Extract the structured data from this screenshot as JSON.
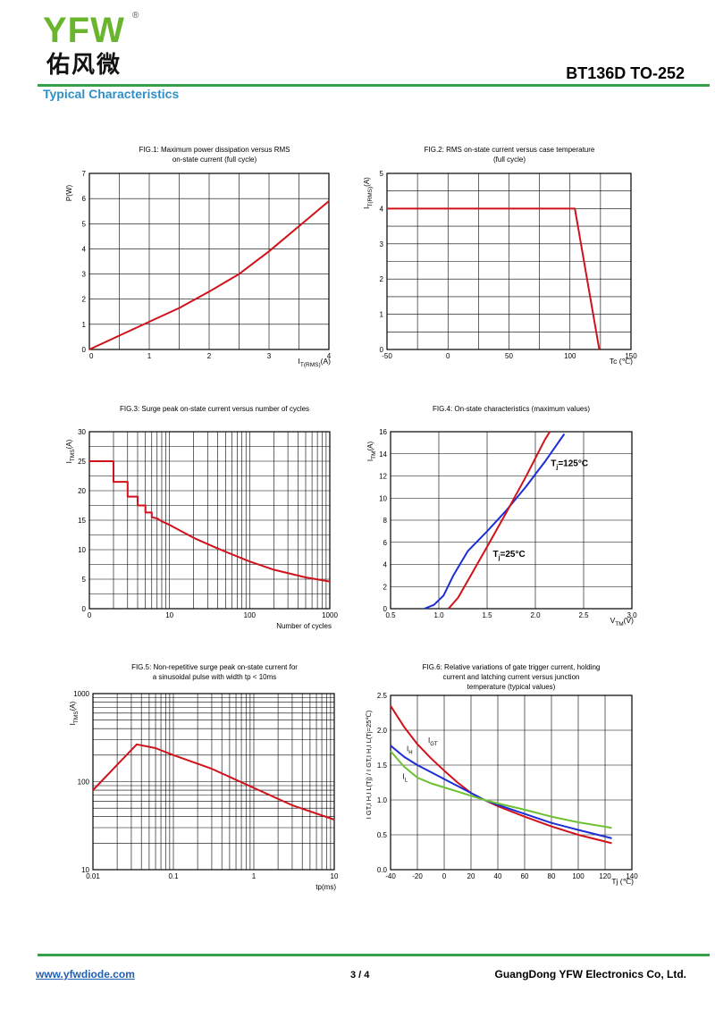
{
  "header": {
    "logo_letters": "YFW",
    "logo_reg": "®",
    "logo_cn": "佑风微",
    "part_number": "BT136D TO-252",
    "section_title": "Typical Characteristics"
  },
  "colors": {
    "red": "#d0121b",
    "blue": "#1c2fd6",
    "green": "#6cc031",
    "rule": "#34a04a",
    "section": "#2f8fc6"
  },
  "footer": {
    "link": "www.yfwdiode.com",
    "page": "3 / 4",
    "company": "GuangDong YFW Electronics Co, Ltd."
  },
  "chart_data": [
    {
      "id": "fig1",
      "type": "line",
      "title_lines": [
        "FIG.1: Maximum power dissipation versus RMS",
        "on-state current (full cycle)"
      ],
      "ylabel": "P(W)",
      "xlabel": "I",
      "xlabel_sub": "T(RMS)",
      "xlabel_unit": "(A)",
      "xlim": [
        0,
        4
      ],
      "ylim": [
        0,
        7
      ],
      "xticks": [
        0,
        1,
        2,
        3,
        4
      ],
      "yticks": [
        0,
        1,
        2,
        3,
        4,
        5,
        6,
        7
      ],
      "grid": true,
      "series": [
        {
          "color": "red",
          "points": [
            [
              0,
              0
            ],
            [
              0.5,
              0.55
            ],
            [
              1,
              1.1
            ],
            [
              1.5,
              1.65
            ],
            [
              2,
              2.3
            ],
            [
              2.5,
              3.0
            ],
            [
              3,
              3.9
            ],
            [
              3.5,
              4.9
            ],
            [
              4,
              5.9
            ]
          ]
        }
      ]
    },
    {
      "id": "fig2",
      "type": "line",
      "title_lines": [
        "FIG.2: RMS on-state current versus case temperature",
        "(full cycle)"
      ],
      "ylabel": "I",
      "ylabel_sub": "T(RMS)",
      "ylabel_unit": "(A)",
      "xlabel": "Tc (℃)",
      "xlim": [
        -50,
        150
      ],
      "ylim": [
        0,
        5
      ],
      "xticks": [
        -50,
        0,
        50,
        100,
        150
      ],
      "yticks": [
        0,
        1,
        2,
        3,
        4,
        5
      ],
      "grid": true,
      "series": [
        {
          "color": "red",
          "points": [
            [
              -50,
              4
            ],
            [
              104,
              4
            ],
            [
              124,
              0
            ]
          ]
        }
      ]
    },
    {
      "id": "fig3",
      "type": "line",
      "title_lines": [
        "FIG.3: Surge peak on-state current versus number of cycles"
      ],
      "ylabel": "I",
      "ylabel_sub": "TMS",
      "ylabel_unit": "(A)",
      "xlabel": "Number of cycles",
      "xscale": "log",
      "xlim": [
        1,
        1000
      ],
      "ylim": [
        0,
        30
      ],
      "xticks": [
        1,
        10,
        100,
        1000
      ],
      "xtick_labels": [
        "0",
        "10",
        "100",
        "1000"
      ],
      "yticks": [
        0,
        5,
        10,
        15,
        20,
        25,
        30
      ],
      "grid": true,
      "series": [
        {
          "color": "red",
          "points": [
            [
              1,
              25
            ],
            [
              2,
              25
            ],
            [
              2,
              21.5
            ],
            [
              3,
              21.5
            ],
            [
              3,
              19
            ],
            [
              4,
              19
            ],
            [
              4,
              17.5
            ],
            [
              5,
              17.5
            ],
            [
              5,
              16.3
            ],
            [
              6,
              16.3
            ],
            [
              6,
              15.5
            ],
            [
              7,
              15.3
            ],
            [
              8,
              14.8
            ],
            [
              9,
              14.5
            ],
            [
              10,
              14.2
            ],
            [
              20,
              12
            ],
            [
              40,
              10.2
            ],
            [
              100,
              8
            ],
            [
              200,
              6.6
            ],
            [
              500,
              5.3
            ],
            [
              1000,
              4.6
            ]
          ]
        }
      ]
    },
    {
      "id": "fig4",
      "type": "line",
      "title_lines": [
        "FIG.4: On-state characteristics (maximum values)"
      ],
      "ylabel": "I",
      "ylabel_sub": "TM",
      "ylabel_unit": "(A)",
      "xlabel": "V",
      "xlabel_sub": "TM",
      "xlabel_unit": "(V)",
      "xlim": [
        0.5,
        3.0
      ],
      "ylim": [
        0,
        16
      ],
      "xticks": [
        0.5,
        1.0,
        1.5,
        2.0,
        2.5,
        3.0
      ],
      "xtick_labels": [
        "0.5",
        "1.0",
        "1.5",
        "2.0",
        "2.5",
        "3.0"
      ],
      "yticks": [
        0,
        2,
        4,
        6,
        8,
        10,
        12,
        14,
        16
      ],
      "grid": true,
      "annotations": [
        {
          "text": "T",
          "sub": "j",
          "rest": "=125°C",
          "x": 2.16,
          "y": 12.9
        },
        {
          "text": "T",
          "sub": "j",
          "rest": "=25°C",
          "x": 1.56,
          "y": 4.7
        }
      ],
      "series": [
        {
          "name": "Tj=125°C",
          "color": "blue",
          "points": [
            [
              0.85,
              0
            ],
            [
              0.95,
              0.35
            ],
            [
              1.05,
              1.2
            ],
            [
              1.15,
              3.0
            ],
            [
              1.3,
              5.2
            ],
            [
              1.5,
              7.0
            ],
            [
              1.7,
              8.9
            ],
            [
              1.9,
              11.0
            ],
            [
              2.1,
              13.3
            ],
            [
              2.3,
              15.8
            ]
          ]
        },
        {
          "name": "Tj=25°C",
          "color": "red",
          "points": [
            [
              1.1,
              0
            ],
            [
              1.2,
              1.0
            ],
            [
              1.35,
              3.3
            ],
            [
              1.5,
              5.6
            ],
            [
              1.7,
              8.7
            ],
            [
              1.9,
              11.9
            ],
            [
              2.1,
              15.3
            ],
            [
              2.15,
              16
            ]
          ]
        }
      ]
    },
    {
      "id": "fig5",
      "type": "line",
      "title_lines": [
        "FIG.5: Non-repetitive surge peak on-state current for",
        "a sinusoidal pulse with width tp < 10ms"
      ],
      "ylabel": "I",
      "ylabel_sub": "TMS",
      "ylabel_unit": "(A)",
      "xlabel": "tp(ms)",
      "xscale": "log",
      "yscale": "log",
      "xlim": [
        0.01,
        10
      ],
      "ylim": [
        10,
        1000
      ],
      "xticks": [
        0.01,
        0.1,
        1,
        10
      ],
      "xtick_labels": [
        "0.01",
        "0.1",
        "1",
        "10"
      ],
      "yticks": [
        10,
        100,
        1000
      ],
      "ytick_labels": [
        "10",
        "100",
        "1000"
      ],
      "grid": true,
      "series": [
        {
          "color": "red",
          "points": [
            [
              0.01,
              80
            ],
            [
              0.035,
              265
            ],
            [
              0.06,
              240
            ],
            [
              0.1,
              200
            ],
            [
              0.3,
              140
            ],
            [
              1,
              85
            ],
            [
              3,
              54
            ],
            [
              10,
              37
            ]
          ]
        }
      ]
    },
    {
      "id": "fig6",
      "type": "line",
      "title_lines": [
        "FIG.6: Relative variations of gate trigger current, holding",
        "current and latching current versus junction",
        "temperature (typical values)"
      ],
      "ylabel": "I GT,I H,I L(Tj) / I GT,I H,I L(Tj=25℃)",
      "xlabel": "Tj (℃)",
      "xlim": [
        -40,
        140
      ],
      "ylim": [
        0,
        2.5
      ],
      "xticks": [
        -40,
        -20,
        0,
        20,
        40,
        60,
        80,
        100,
        120,
        140
      ],
      "yticks": [
        0,
        0.5,
        1.0,
        1.5,
        2.0,
        2.5
      ],
      "ytick_labels": [
        "0.0",
        "0.5",
        "1.0",
        "1.5",
        "2.0",
        "2.5"
      ],
      "grid": true,
      "labels": [
        {
          "text": "I",
          "sub": "GT",
          "x": -12,
          "y": 1.82
        },
        {
          "text": "I",
          "sub": "H",
          "x": -28,
          "y": 1.7
        },
        {
          "text": "I",
          "sub": "L",
          "x": -31,
          "y": 1.3
        }
      ],
      "series": [
        {
          "name": "IGT",
          "color": "red",
          "points": [
            [
              -40,
              2.35
            ],
            [
              -30,
              2.05
            ],
            [
              -20,
              1.8
            ],
            [
              -10,
              1.6
            ],
            [
              0,
              1.42
            ],
            [
              10,
              1.25
            ],
            [
              20,
              1.1
            ],
            [
              30,
              1.0
            ],
            [
              40,
              0.91
            ],
            [
              60,
              0.76
            ],
            [
              80,
              0.62
            ],
            [
              100,
              0.5
            ],
            [
              125,
              0.38
            ]
          ]
        },
        {
          "name": "IH",
          "color": "blue",
          "points": [
            [
              -40,
              1.78
            ],
            [
              -30,
              1.62
            ],
            [
              -20,
              1.5
            ],
            [
              -10,
              1.4
            ],
            [
              0,
              1.3
            ],
            [
              10,
              1.2
            ],
            [
              20,
              1.1
            ],
            [
              30,
              1.0
            ],
            [
              40,
              0.93
            ],
            [
              60,
              0.8
            ],
            [
              80,
              0.67
            ],
            [
              100,
              0.57
            ],
            [
              125,
              0.45
            ]
          ]
        },
        {
          "name": "IL",
          "color": "green",
          "points": [
            [
              -40,
              1.7
            ],
            [
              -30,
              1.48
            ],
            [
              -20,
              1.32
            ],
            [
              -10,
              1.24
            ],
            [
              0,
              1.18
            ],
            [
              10,
              1.12
            ],
            [
              20,
              1.06
            ],
            [
              30,
              1.0
            ],
            [
              40,
              0.95
            ],
            [
              60,
              0.86
            ],
            [
              80,
              0.76
            ],
            [
              100,
              0.68
            ],
            [
              125,
              0.6
            ]
          ]
        }
      ]
    }
  ]
}
